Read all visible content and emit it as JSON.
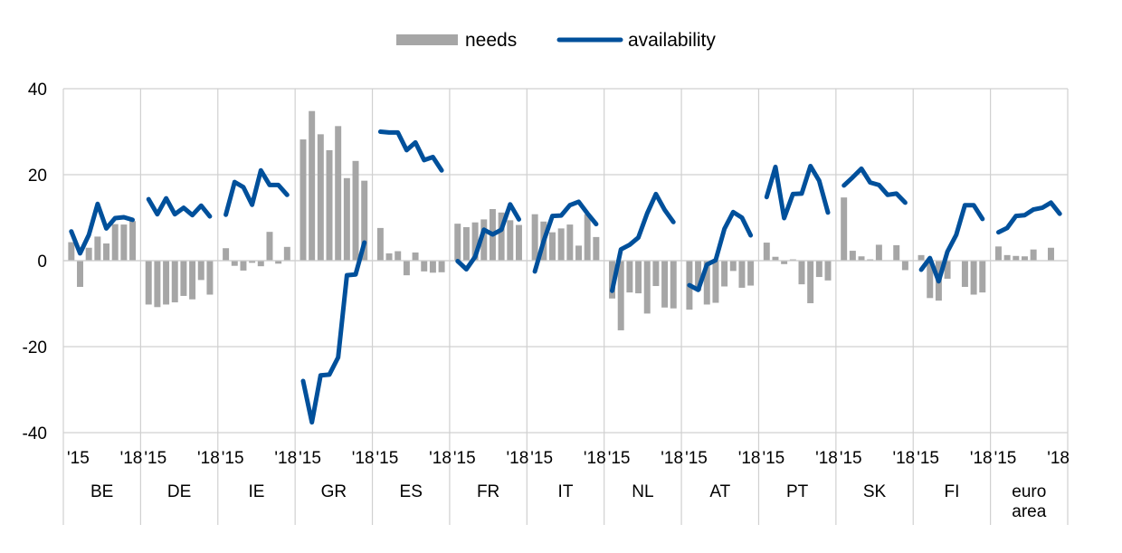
{
  "chart_data": {
    "type": "bar+line",
    "ylim": [
      -40,
      40
    ],
    "y_ticks": [
      40,
      20,
      0,
      -20,
      -40
    ],
    "tick_start_label": "'15",
    "tick_end_label": "'18",
    "legend": {
      "placement": "top-center",
      "items": [
        {
          "name": "needs",
          "kind": "bar",
          "color": "#a6a6a6"
        },
        {
          "name": "availability",
          "kind": "line",
          "color": "#00509b"
        }
      ]
    },
    "colors": {
      "needs": "#a6a6a6",
      "availability": "#00509b",
      "grid": "#d0d0d0"
    },
    "groups": [
      {
        "label": [
          "BE"
        ],
        "needs": [
          4.3,
          -6.1,
          3.0,
          5.6,
          4.0,
          8.5,
          8.4,
          9.2
        ],
        "availability": [
          6.8,
          1.7,
          6.0,
          13.2,
          7.5,
          9.9,
          10.1,
          9.5
        ]
      },
      {
        "label": [
          "DE"
        ],
        "needs": [
          -10.2,
          -10.8,
          -10.2,
          -9.7,
          -8.2,
          -9.0,
          -4.5,
          -7.9
        ],
        "availability": [
          14.3,
          10.8,
          14.5,
          10.8,
          12.3,
          10.6,
          12.8,
          10.3
        ]
      },
      {
        "label": [
          "IE"
        ],
        "needs": [
          2.9,
          -1.2,
          -2.3,
          -0.5,
          -1.3,
          6.7,
          -0.7,
          3.2
        ],
        "availability": [
          10.7,
          18.3,
          17.1,
          13.0,
          21.0,
          17.6,
          17.6,
          15.3
        ]
      },
      {
        "label": [
          "GR"
        ],
        "needs": [
          28.2,
          34.8,
          29.4,
          25.7,
          31.3,
          19.2,
          23.2,
          18.6
        ],
        "availability": [
          -28.0,
          -37.6,
          -26.7,
          -26.5,
          -22.5,
          -3.4,
          -3.2,
          4.2
        ]
      },
      {
        "label": [
          "ES"
        ],
        "needs": [
          7.6,
          1.7,
          2.2,
          -3.4,
          1.9,
          -2.5,
          -2.8,
          -2.7
        ],
        "availability": [
          30.0,
          29.8,
          29.8,
          25.7,
          27.5,
          23.4,
          24.1,
          21.0
        ]
      },
      {
        "label": [
          "FR"
        ],
        "needs": [
          8.6,
          7.8,
          8.9,
          9.6,
          12.0,
          11.2,
          9.4,
          8.3
        ],
        "availability": [
          -0.1,
          -2.0,
          0.9,
          7.2,
          6.1,
          7.2,
          13.1,
          9.6
        ]
      },
      {
        "label": [
          "IT"
        ],
        "needs": [
          10.8,
          9.1,
          6.6,
          7.5,
          8.4,
          3.5,
          10.8,
          5.5
        ],
        "availability": [
          -2.5,
          4.5,
          10.4,
          10.5,
          12.9,
          13.7,
          11.0,
          8.5
        ]
      },
      {
        "label": [
          "NL"
        ],
        "needs": [
          -8.8,
          -16.2,
          -7.4,
          -7.6,
          -12.3,
          -5.9,
          -10.9,
          -11.1
        ],
        "availability": [
          -7.0,
          2.6,
          3.7,
          5.4,
          11.0,
          15.5,
          11.8,
          9.0
        ]
      },
      {
        "label": [
          "AT"
        ],
        "needs": [
          -11.4,
          -7.0,
          -10.2,
          -9.8,
          -6.0,
          -2.4,
          -6.3,
          -5.8
        ],
        "availability": [
          -5.7,
          -6.8,
          -0.9,
          0.1,
          7.4,
          11.3,
          10.0,
          5.9
        ]
      },
      {
        "label": [
          "PT"
        ],
        "needs": [
          4.2,
          0.9,
          -0.8,
          0.3,
          -5.5,
          -9.9,
          -3.8,
          -4.6
        ],
        "availability": [
          14.8,
          21.8,
          9.9,
          15.5,
          15.6,
          22.0,
          18.6,
          11.2
        ]
      },
      {
        "label": [
          "SK"
        ],
        "needs": [
          14.7,
          2.3,
          1.0,
          0.3,
          3.7,
          -0.1,
          3.6,
          -2.2
        ],
        "availability": [
          17.5,
          19.4,
          21.4,
          18.2,
          17.6,
          15.3,
          15.6,
          13.5
        ]
      },
      {
        "label": [
          "FI"
        ],
        "needs": [
          1.3,
          -8.7,
          -9.3,
          -4.2,
          0.0,
          -6.1,
          -7.9,
          -7.4
        ],
        "availability": [
          -2.1,
          0.6,
          -4.8,
          2.1,
          6.0,
          12.9,
          12.9,
          9.7
        ]
      },
      {
        "label": [
          "euro",
          "area"
        ],
        "needs": [
          3.3,
          1.3,
          1.1,
          1.0,
          2.6,
          0.0,
          3.0,
          0.0
        ],
        "availability": [
          6.6,
          7.6,
          10.4,
          10.6,
          11.9,
          12.3,
          13.5,
          10.9
        ]
      }
    ]
  }
}
